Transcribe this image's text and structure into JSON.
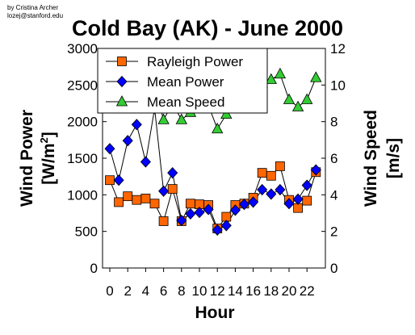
{
  "credit": {
    "line1": "by Cristina Archer",
    "line2": "lozej@stanford.edu"
  },
  "chart_data": {
    "type": "line",
    "title": "Cold Bay (AK) - June 2000",
    "xlabel": "Hour",
    "ylabel_left": "Wind Power [W/m2]",
    "ylabel_left_main": "Wind Power",
    "ylabel_left_unit": "[W/m",
    "ylabel_left_sup": "2",
    "ylabel_left_close": "]",
    "ylabel_right": "Wind Speed [m/s]",
    "ylabel_right_main": "Wind Speed",
    "ylabel_right_unit": "[m/s]",
    "xlim": [
      0,
      23
    ],
    "ylim_left": [
      0,
      3000
    ],
    "ylim_right": [
      0,
      12
    ],
    "x_ticks": [
      0,
      2,
      4,
      6,
      8,
      10,
      12,
      14,
      16,
      18,
      20,
      22
    ],
    "y_left_ticks": [
      0,
      500,
      1000,
      1500,
      2000,
      2500,
      3000
    ],
    "y_right_ticks": [
      0,
      2,
      4,
      6,
      8,
      10,
      12
    ],
    "grid": false,
    "legend_position": "top-left",
    "x": [
      0,
      1,
      2,
      3,
      4,
      5,
      6,
      7,
      8,
      9,
      10,
      11,
      12,
      13,
      14,
      15,
      16,
      17,
      18,
      19,
      20,
      21,
      22,
      23
    ],
    "series": [
      {
        "name": "Rayleigh Power",
        "axis": "left",
        "marker": "square",
        "color": "#ff6600",
        "values": [
          1200,
          900,
          980,
          930,
          950,
          880,
          640,
          1080,
          640,
          880,
          870,
          860,
          540,
          700,
          860,
          880,
          960,
          1300,
          1260,
          1390,
          930,
          820,
          920,
          1310
        ]
      },
      {
        "name": "Mean Power",
        "axis": "left",
        "marker": "diamond",
        "color": "#0000ff",
        "values": [
          1630,
          1200,
          1740,
          1960,
          1450,
          2180,
          1050,
          1300,
          650,
          740,
          760,
          800,
          520,
          580,
          790,
          870,
          900,
          1070,
          1010,
          1070,
          880,
          940,
          1130,
          1340
        ]
      },
      {
        "name": "Mean Speed",
        "axis": "right",
        "marker": "triangle",
        "color": "#33cc33",
        "values": [
          9.8,
          9.9,
          10.0,
          10.1,
          10.0,
          9.9,
          8.1,
          9.0,
          8.1,
          8.5,
          8.7,
          8.9,
          7.6,
          8.4,
          9.5,
          10.0,
          10.4,
          10.1,
          10.3,
          10.6,
          9.2,
          8.8,
          9.2,
          10.4
        ]
      }
    ]
  }
}
